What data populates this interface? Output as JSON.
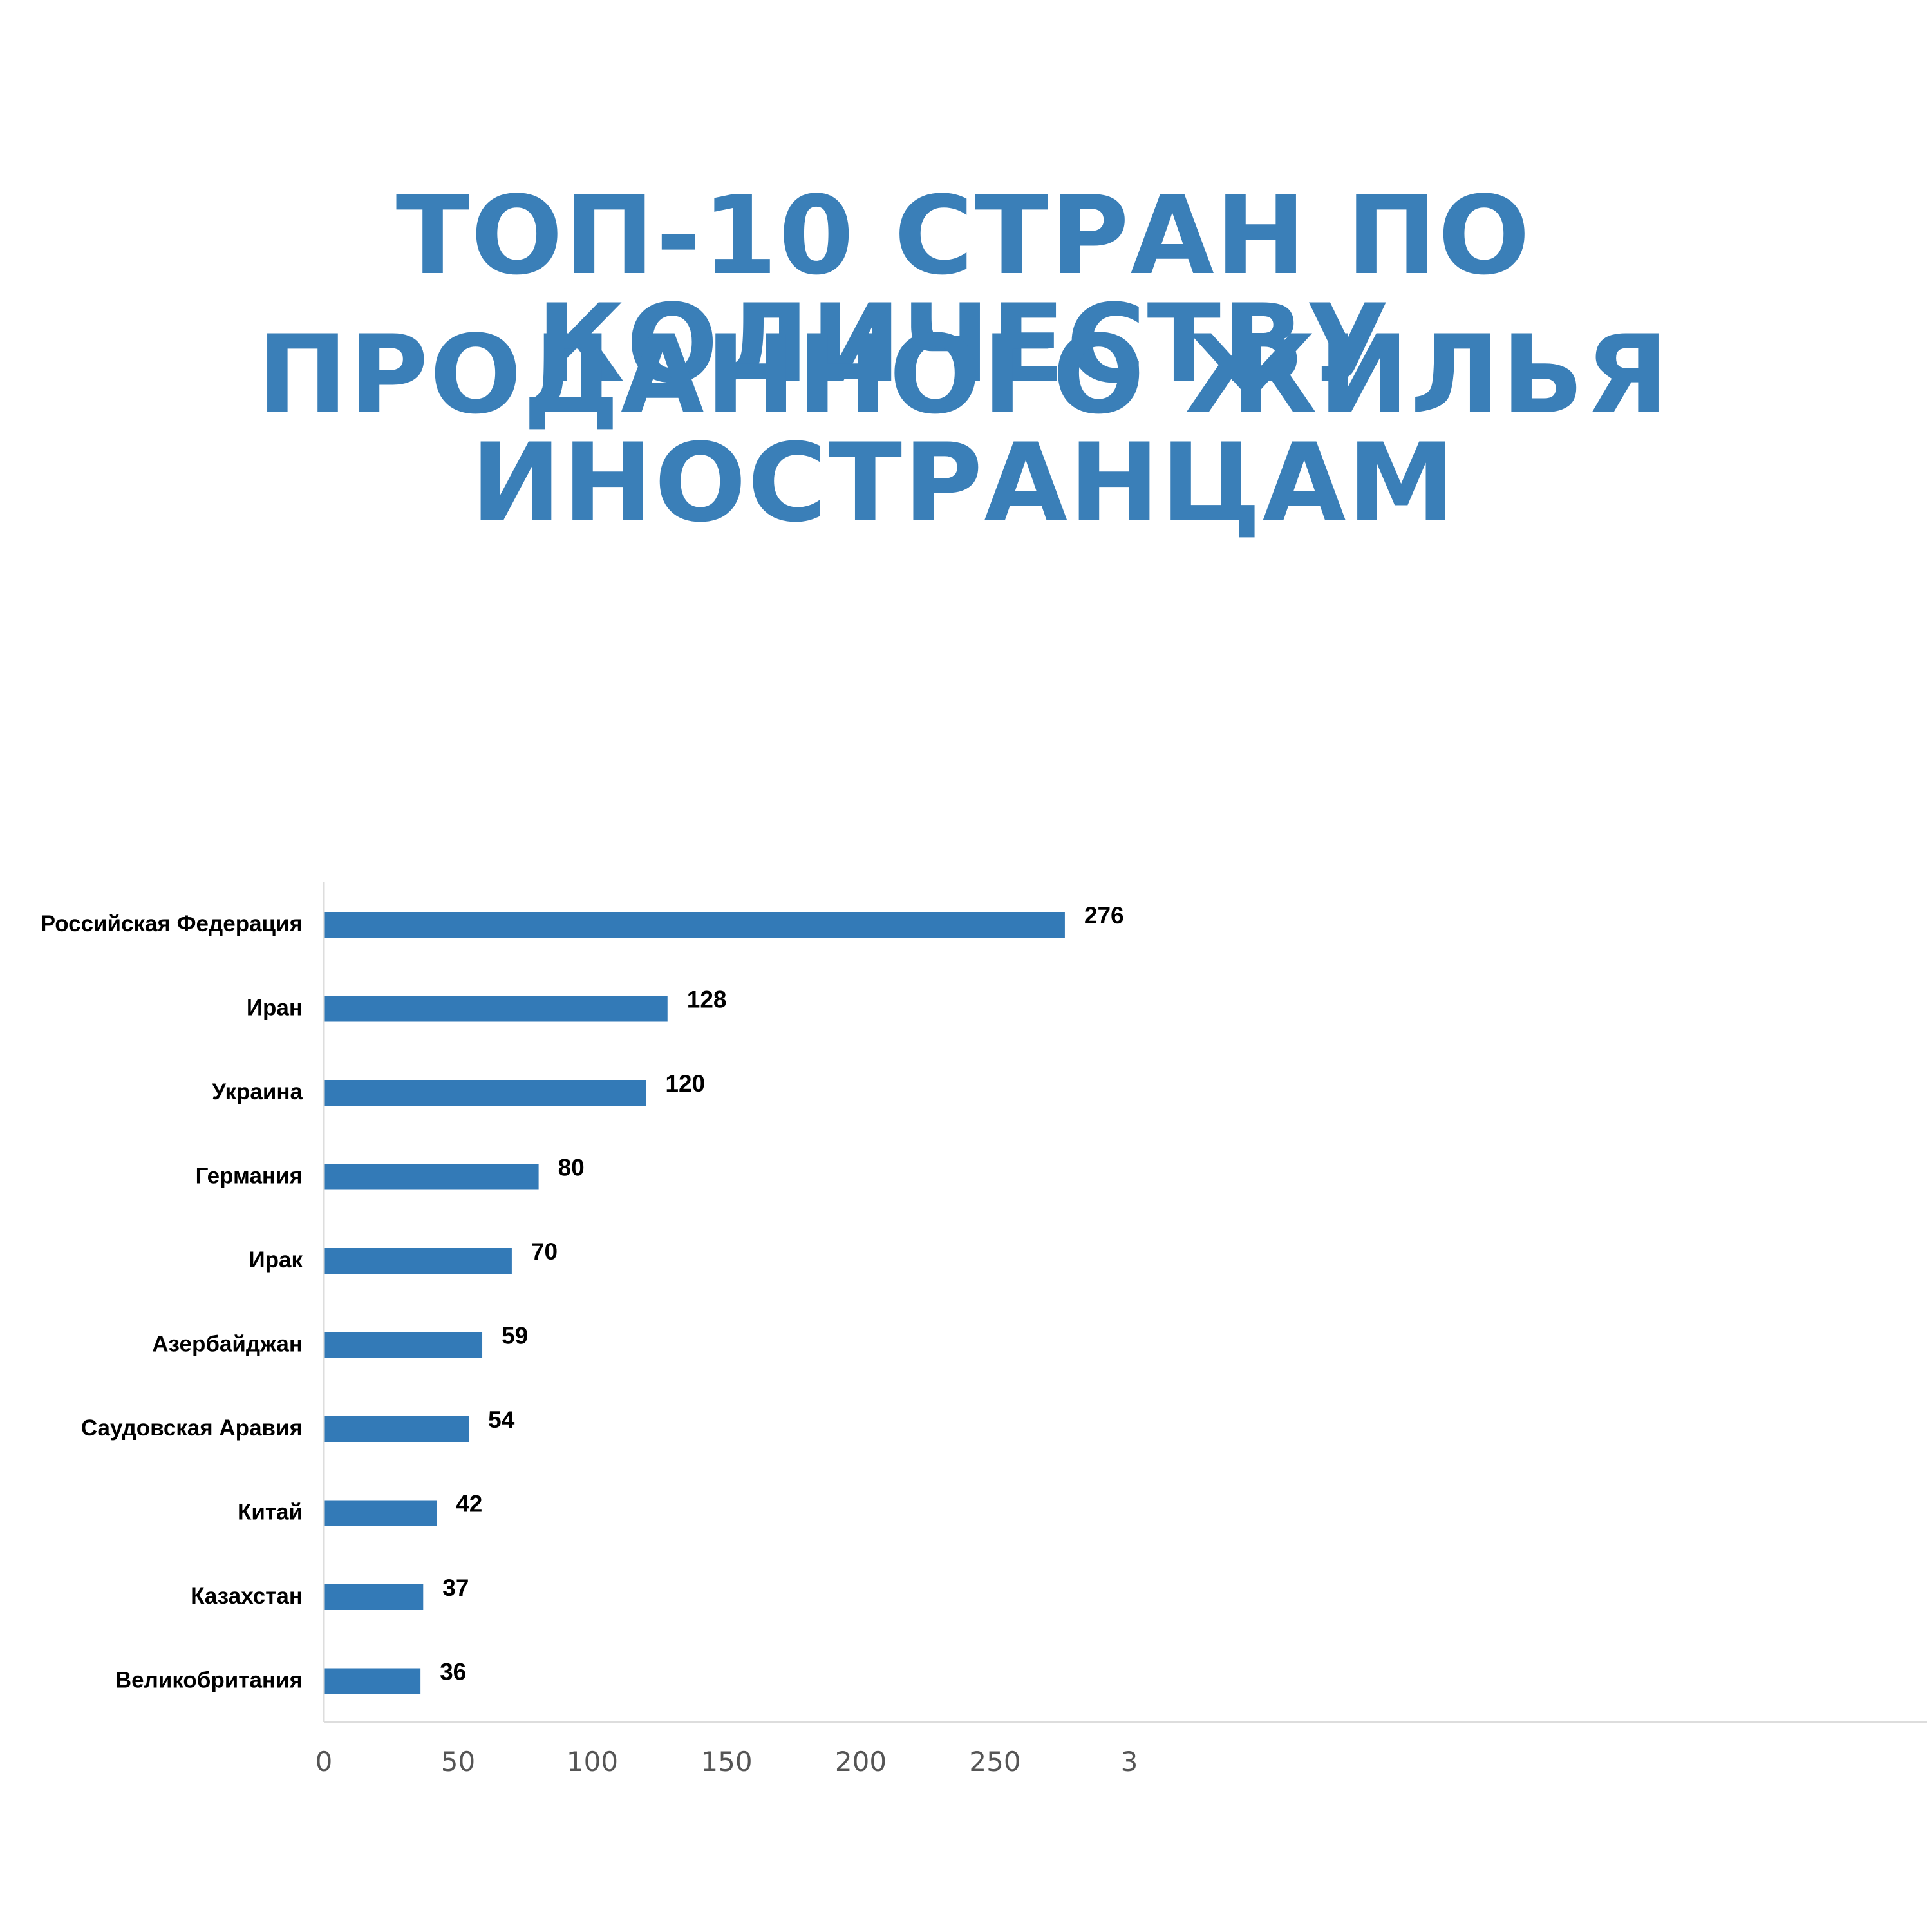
{
  "title_lines": [
    "ТОП-10 СТРАН ПО КОЛИЧЕСТВУ",
    "ПРОДАННОГО ЖИЛЬЯ ИНОСТРАНЦАМ"
  ],
  "colors": {
    "title": "#3a7fb8",
    "bar": "#337ab7",
    "axis": "#dddddd",
    "text": "#000000",
    "tick": "#555555"
  },
  "chart_data": {
    "type": "bar",
    "orientation": "horizontal",
    "title": "ТОП-10 СТРАН ПО КОЛИЧЕСТВУ ПРОДАННОГО ЖИЛЬЯ ИНОСТРАНЦАМ",
    "categories": [
      "Российская Федерация",
      "Иран",
      "Украина",
      "Германия",
      "Ирак",
      "Азербайджан",
      "Саудовская Аравия",
      "Китай",
      "Казахстан",
      "Великобритания"
    ],
    "values": [
      276,
      128,
      120,
      80,
      70,
      59,
      54,
      42,
      37,
      36
    ],
    "data_labels": [
      "276",
      "128",
      "120",
      "80",
      "70",
      "59",
      "54",
      "42",
      "37",
      "36"
    ],
    "xticks": [
      "0",
      "50",
      "100",
      "150",
      "200",
      "250",
      "3"
    ],
    "xlim": [
      0,
      300
    ],
    "xlabel": "",
    "ylabel": "",
    "grid": false,
    "legend": "none"
  }
}
